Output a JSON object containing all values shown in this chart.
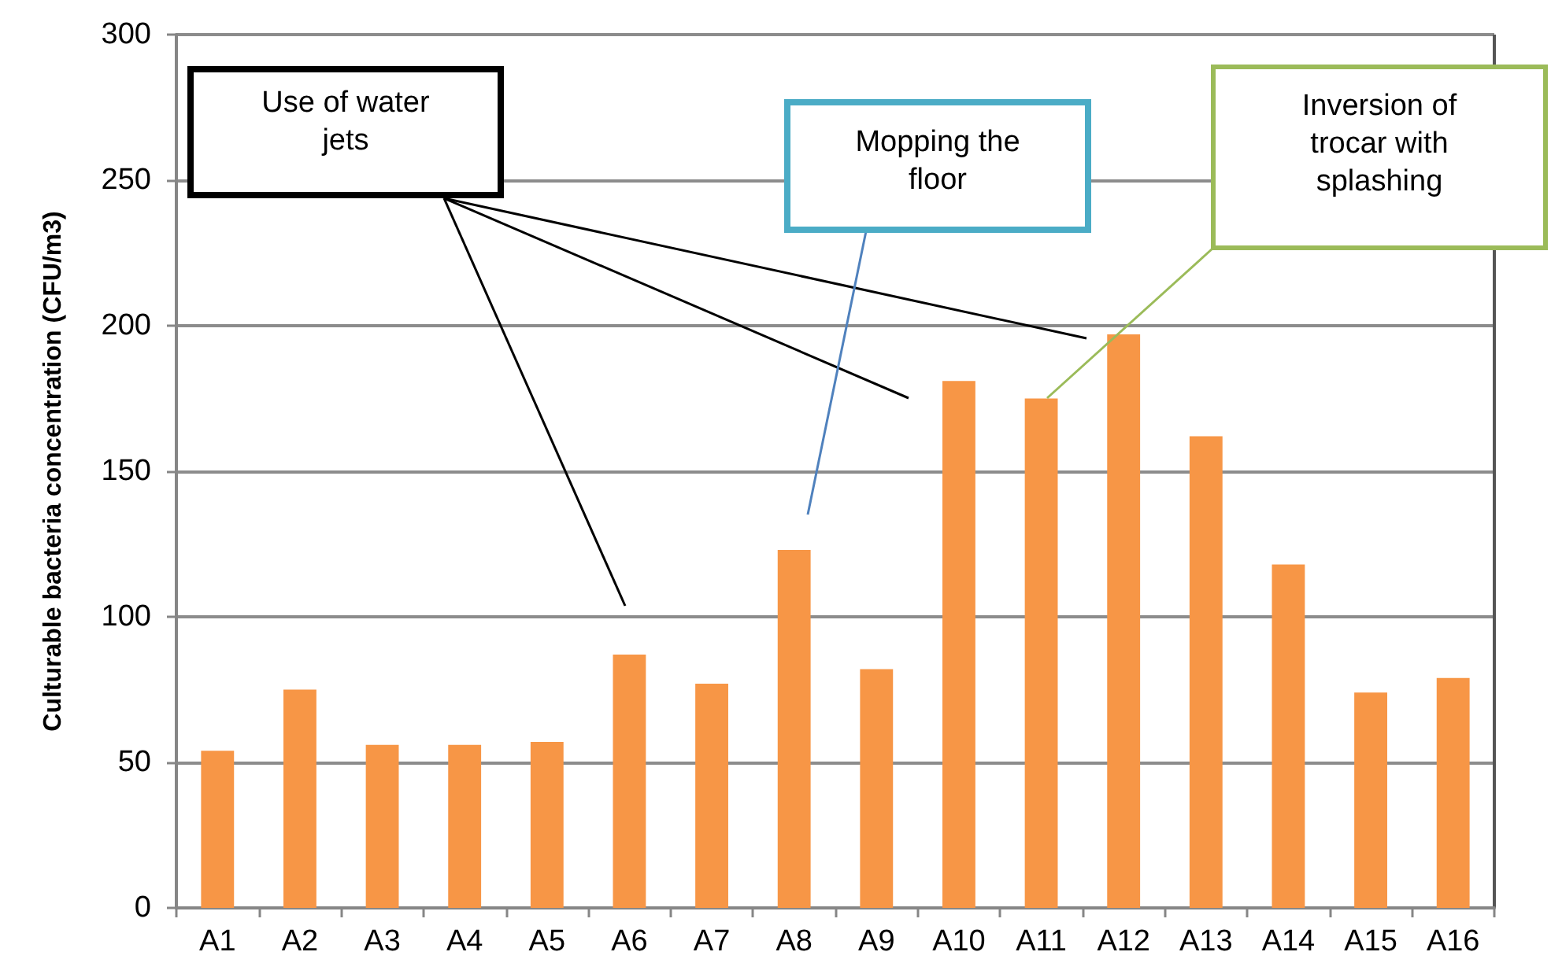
{
  "chart_data": {
    "type": "bar",
    "ylabel": "Culturable bacteria concentration (CFU/m3)",
    "categories": [
      "A1",
      "A2",
      "A3",
      "A4",
      "A5",
      "A6",
      "A7",
      "A8",
      "A9",
      "A10",
      "A11",
      "A12",
      "A13",
      "A14",
      "A15",
      "A16"
    ],
    "values": [
      54,
      75,
      56,
      56,
      57,
      87,
      77,
      123,
      82,
      181,
      175,
      197,
      162,
      118,
      74,
      79
    ],
    "color": "#f79646",
    "ylim": [
      0,
      300
    ],
    "yticks": [
      0,
      50,
      100,
      150,
      200,
      250,
      300
    ],
    "grid": "y",
    "annotations": [
      "Use of water jets",
      "Mopping the floor",
      "Inversion of trocar with splashing"
    ]
  }
}
